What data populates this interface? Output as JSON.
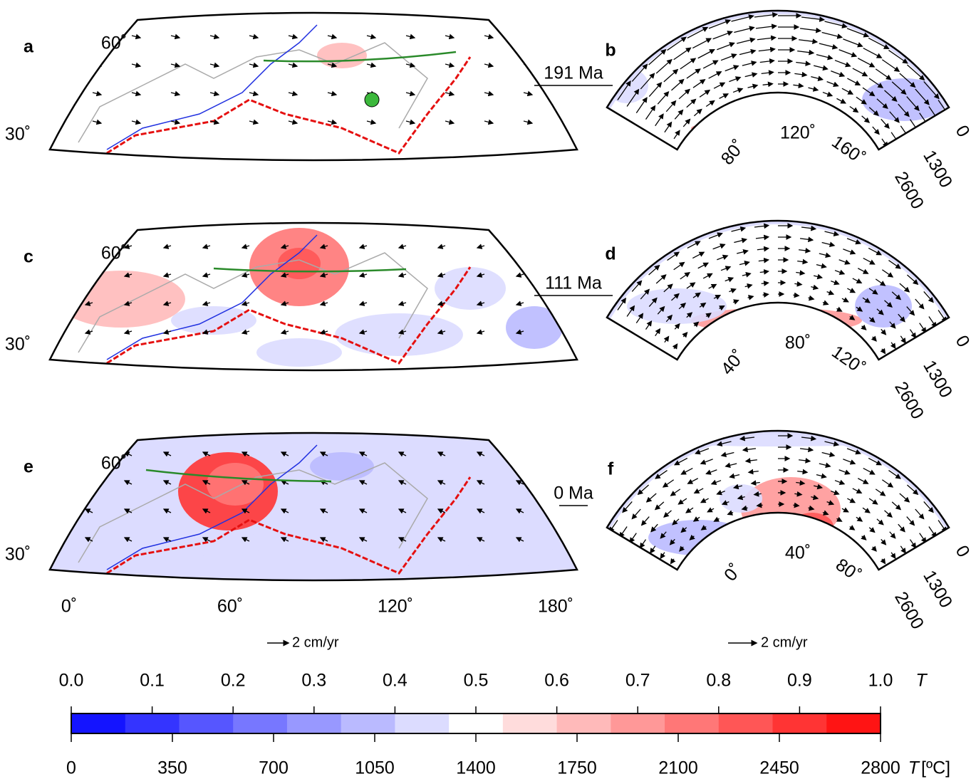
{
  "map_panels": [
    {
      "label": "a",
      "lat_labels": [
        "60˚",
        "30˚"
      ]
    },
    {
      "label": "c",
      "lat_labels": [
        "60˚",
        "30˚"
      ]
    },
    {
      "label": "e",
      "lat_labels": [
        "60˚",
        "30˚"
      ]
    }
  ],
  "section_panels": [
    {
      "label": "b",
      "angle_labels": [
        "80˚",
        "120˚",
        "160˚"
      ],
      "depth_labels": [
        "0",
        "1300",
        "2600"
      ]
    },
    {
      "label": "d",
      "angle_labels": [
        "40˚",
        "80˚",
        "120˚"
      ],
      "depth_labels": [
        "0",
        "1300",
        "2600"
      ]
    },
    {
      "label": "f",
      "angle_labels": [
        "0˚",
        "40˚",
        "80˚"
      ],
      "depth_labels": [
        "0",
        "1300",
        "2600"
      ]
    }
  ],
  "ages": [
    "191 Ma",
    "111 Ma",
    "0 Ma"
  ],
  "lon_labels": [
    "0˚",
    "60˚",
    "120˚",
    "180˚"
  ],
  "scale_labels": [
    "2 cm/yr",
    "2 cm/yr"
  ],
  "colorbar": {
    "top_symbol": "T",
    "top_lim": [
      0,
      1
    ],
    "top_ticks": [
      {
        "value": 0,
        "label": "0.0"
      },
      {
        "value": 0.1,
        "label": "0.1"
      },
      {
        "value": 0.2,
        "label": "0.2"
      },
      {
        "value": 0.3,
        "label": "0.3"
      },
      {
        "value": 0.4,
        "label": "0.4"
      },
      {
        "value": 0.5,
        "label": "0.5"
      },
      {
        "value": 0.6,
        "label": "0.6"
      },
      {
        "value": 0.7,
        "label": "0.7"
      },
      {
        "value": 0.8,
        "label": "0.8"
      },
      {
        "value": 0.9,
        "label": "0.9"
      },
      {
        "value": 1,
        "label": "1.0"
      }
    ],
    "bottom_lim": [
      0,
      2800
    ],
    "bottom_ticks": [
      0,
      350,
      700,
      1050,
      1400,
      1750,
      2100,
      2450,
      2800
    ],
    "unit_symbol": "T",
    "unit": "[ºC]",
    "colors": [
      "#1414ff",
      "#3434ff",
      "#5656ff",
      "#7777ff",
      "#9898ff",
      "#babaff",
      "#dcdcff",
      "#ffffff",
      "#ffdcdc",
      "#ffbaba",
      "#ff9898",
      "#ff7777",
      "#ff5656",
      "#ff3434",
      "#ff1414"
    ]
  }
}
